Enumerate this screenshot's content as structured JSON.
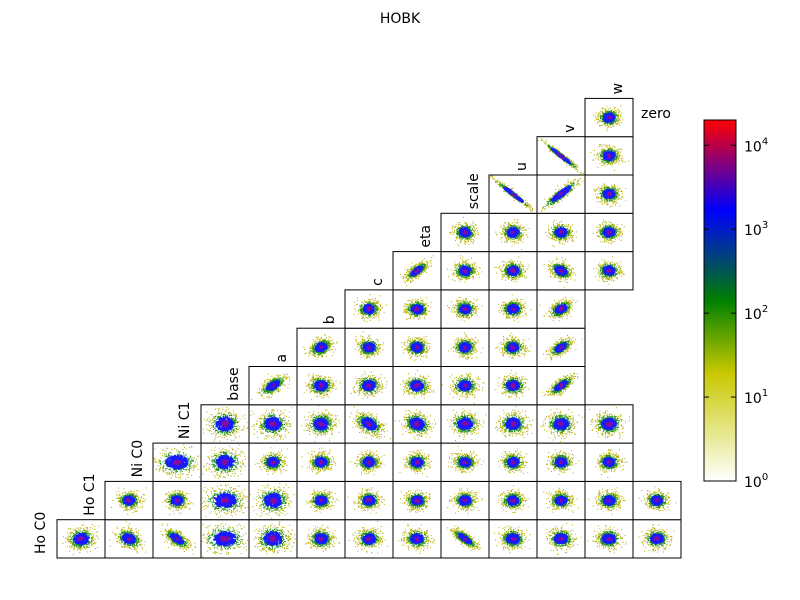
{
  "chart_data": {
    "type": "heatmap",
    "subtype": "corner-plot",
    "title": "HOBK",
    "parameters": [
      "Ho C0",
      "Ho C1",
      "Ni C0",
      "Ni C1",
      "base",
      "a",
      "b",
      "c",
      "eta",
      "scale",
      "u",
      "v",
      "w",
      "zero"
    ],
    "cells": [
      {
        "row": 0,
        "col": 0,
        "shape": "blob",
        "spread": 0.25,
        "corr": 0
      },
      {
        "row": 0,
        "col": 1,
        "shape": "blob",
        "spread": 0.22,
        "corr": -0.3
      },
      {
        "row": 0,
        "col": 2,
        "shape": "blob",
        "spread": 0.22,
        "corr": -0.6
      },
      {
        "row": 0,
        "col": 3,
        "shape": "wide",
        "spread": 0.3,
        "corr": 0
      },
      {
        "row": 0,
        "col": 4,
        "shape": "blob",
        "spread": 0.3,
        "corr": 0
      },
      {
        "row": 0,
        "col": 5,
        "shape": "blob",
        "spread": 0.22,
        "corr": 0
      },
      {
        "row": 0,
        "col": 6,
        "shape": "blob",
        "spread": 0.22,
        "corr": 0
      },
      {
        "row": 0,
        "col": 7,
        "shape": "blob",
        "spread": 0.22,
        "corr": 0
      },
      {
        "row": 0,
        "col": 8,
        "shape": "blob",
        "spread": 0.22,
        "corr": -0.75
      },
      {
        "row": 0,
        "col": 9,
        "shape": "blob",
        "spread": 0.22,
        "corr": 0
      },
      {
        "row": 0,
        "col": 10,
        "shape": "blob",
        "spread": 0.22,
        "corr": 0
      },
      {
        "row": 0,
        "col": 11,
        "shape": "blob",
        "spread": 0.22,
        "corr": 0
      },
      {
        "row": 0,
        "col": 12,
        "shape": "blob",
        "spread": 0.22,
        "corr": 0
      },
      {
        "row": 1,
        "col": 1,
        "shape": "blob",
        "spread": 0.2,
        "corr": 0
      },
      {
        "row": 1,
        "col": 2,
        "shape": "blob",
        "spread": 0.2,
        "corr": 0
      },
      {
        "row": 1,
        "col": 3,
        "shape": "wide",
        "spread": 0.3,
        "corr": 0
      },
      {
        "row": 1,
        "col": 4,
        "shape": "blob",
        "spread": 0.3,
        "corr": 0
      },
      {
        "row": 1,
        "col": 5,
        "shape": "blob",
        "spread": 0.2,
        "corr": 0
      },
      {
        "row": 1,
        "col": 6,
        "shape": "blob",
        "spread": 0.2,
        "corr": 0
      },
      {
        "row": 1,
        "col": 7,
        "shape": "blob",
        "spread": 0.2,
        "corr": 0
      },
      {
        "row": 1,
        "col": 8,
        "shape": "blob",
        "spread": 0.2,
        "corr": 0
      },
      {
        "row": 1,
        "col": 9,
        "shape": "blob",
        "spread": 0.2,
        "corr": 0
      },
      {
        "row": 1,
        "col": 10,
        "shape": "blob",
        "spread": 0.2,
        "corr": 0
      },
      {
        "row": 1,
        "col": 11,
        "shape": "blob",
        "spread": 0.2,
        "corr": 0
      },
      {
        "row": 1,
        "col": 12,
        "shape": "blob",
        "spread": 0.2,
        "corr": 0
      },
      {
        "row": 2,
        "col": 2,
        "shape": "wide",
        "spread": 0.3,
        "corr": 0
      },
      {
        "row": 2,
        "col": 3,
        "shape": "blob",
        "spread": 0.3,
        "corr": 0
      },
      {
        "row": 2,
        "col": 4,
        "shape": "blob",
        "spread": 0.2,
        "corr": 0
      },
      {
        "row": 2,
        "col": 5,
        "shape": "blob",
        "spread": 0.2,
        "corr": 0
      },
      {
        "row": 2,
        "col": 6,
        "shape": "blob",
        "spread": 0.2,
        "corr": 0
      },
      {
        "row": 2,
        "col": 7,
        "shape": "blob",
        "spread": 0.2,
        "corr": 0
      },
      {
        "row": 2,
        "col": 8,
        "shape": "blob",
        "spread": 0.2,
        "corr": 0
      },
      {
        "row": 2,
        "col": 9,
        "shape": "blob",
        "spread": 0.2,
        "corr": 0
      },
      {
        "row": 2,
        "col": 10,
        "shape": "blob",
        "spread": 0.2,
        "corr": 0
      },
      {
        "row": 2,
        "col": 11,
        "shape": "blob",
        "spread": 0.2,
        "corr": 0
      },
      {
        "row": 3,
        "col": 3,
        "shape": "blob",
        "spread": 0.3,
        "corr": 0
      },
      {
        "row": 3,
        "col": 4,
        "shape": "blob",
        "spread": 0.28,
        "corr": 0
      },
      {
        "row": 3,
        "col": 5,
        "shape": "blob",
        "spread": 0.25,
        "corr": 0
      },
      {
        "row": 3,
        "col": 6,
        "shape": "blob",
        "spread": 0.25,
        "corr": -0.4
      },
      {
        "row": 3,
        "col": 7,
        "shape": "blob",
        "spread": 0.25,
        "corr": -0.2
      },
      {
        "row": 3,
        "col": 8,
        "shape": "blob",
        "spread": 0.25,
        "corr": 0
      },
      {
        "row": 3,
        "col": 9,
        "shape": "blob",
        "spread": 0.25,
        "corr": 0
      },
      {
        "row": 3,
        "col": 10,
        "shape": "blob",
        "spread": 0.25,
        "corr": 0
      },
      {
        "row": 3,
        "col": 11,
        "shape": "blob",
        "spread": 0.25,
        "corr": 0
      },
      {
        "row": 4,
        "col": 4,
        "shape": "blob",
        "spread": 0.22,
        "corr": 0.6
      },
      {
        "row": 4,
        "col": 5,
        "shape": "blob",
        "spread": 0.22,
        "corr": 0
      },
      {
        "row": 4,
        "col": 6,
        "shape": "blob",
        "spread": 0.22,
        "corr": 0
      },
      {
        "row": 4,
        "col": 7,
        "shape": "blob",
        "spread": 0.22,
        "corr": 0
      },
      {
        "row": 4,
        "col": 8,
        "shape": "blob",
        "spread": 0.22,
        "corr": 0
      },
      {
        "row": 4,
        "col": 9,
        "shape": "blob",
        "spread": 0.22,
        "corr": 0
      },
      {
        "row": 4,
        "col": 10,
        "shape": "blob",
        "spread": 0.22,
        "corr": 0.7
      },
      {
        "row": 5,
        "col": 5,
        "shape": "blob",
        "spread": 0.2,
        "corr": 0.3
      },
      {
        "row": 5,
        "col": 6,
        "shape": "blob",
        "spread": 0.2,
        "corr": 0
      },
      {
        "row": 5,
        "col": 7,
        "shape": "blob",
        "spread": 0.2,
        "corr": 0
      },
      {
        "row": 5,
        "col": 8,
        "shape": "blob",
        "spread": 0.2,
        "corr": 0
      },
      {
        "row": 5,
        "col": 9,
        "shape": "blob",
        "spread": 0.2,
        "corr": 0
      },
      {
        "row": 5,
        "col": 10,
        "shape": "blob",
        "spread": 0.2,
        "corr": 0.6
      },
      {
        "row": 6,
        "col": 6,
        "shape": "blob",
        "spread": 0.2,
        "corr": 0
      },
      {
        "row": 6,
        "col": 7,
        "shape": "blob",
        "spread": 0.2,
        "corr": 0
      },
      {
        "row": 6,
        "col": 8,
        "shape": "blob",
        "spread": 0.2,
        "corr": 0
      },
      {
        "row": 6,
        "col": 9,
        "shape": "blob",
        "spread": 0.2,
        "corr": 0
      },
      {
        "row": 6,
        "col": 10,
        "shape": "blob",
        "spread": 0.2,
        "corr": 0.4
      },
      {
        "row": 7,
        "col": 7,
        "shape": "blob",
        "spread": 0.2,
        "corr": 0.7
      },
      {
        "row": 7,
        "col": 8,
        "shape": "blob",
        "spread": 0.2,
        "corr": 0
      },
      {
        "row": 7,
        "col": 9,
        "shape": "blob",
        "spread": 0.2,
        "corr": 0
      },
      {
        "row": 7,
        "col": 10,
        "shape": "blob",
        "spread": 0.2,
        "corr": -0.3
      },
      {
        "row": 7,
        "col": 11,
        "shape": "blob",
        "spread": 0.2,
        "corr": 0
      },
      {
        "row": 8,
        "col": 8,
        "shape": "blob",
        "spread": 0.2,
        "corr": 0
      },
      {
        "row": 8,
        "col": 9,
        "shape": "blob",
        "spread": 0.2,
        "corr": 0
      },
      {
        "row": 8,
        "col": 10,
        "shape": "blob",
        "spread": 0.2,
        "corr": 0
      },
      {
        "row": 8,
        "col": 11,
        "shape": "blob",
        "spread": 0.2,
        "corr": 0
      },
      {
        "row": 9,
        "col": 9,
        "shape": "line",
        "spread": 0.2,
        "corr": -0.97
      },
      {
        "row": 9,
        "col": 10,
        "shape": "line",
        "spread": 0.2,
        "corr": 0.9
      },
      {
        "row": 9,
        "col": 11,
        "shape": "blob",
        "spread": 0.2,
        "corr": 0
      },
      {
        "row": 10,
        "col": 10,
        "shape": "line",
        "spread": 0.2,
        "corr": -0.97
      },
      {
        "row": 10,
        "col": 11,
        "shape": "blob",
        "spread": 0.2,
        "corr": 0
      },
      {
        "row": 11,
        "col": 11,
        "shape": "blob",
        "spread": 0.2,
        "corr": 0
      }
    ],
    "colorbar": {
      "scale": "log",
      "range": [
        1,
        20000
      ],
      "ticks": [
        {
          "value": 1,
          "base": "10",
          "exp": "0"
        },
        {
          "value": 10,
          "base": "10",
          "exp": "1"
        },
        {
          "value": 100,
          "base": "10",
          "exp": "2"
        },
        {
          "value": 1000,
          "base": "10",
          "exp": "3"
        },
        {
          "value": 10000,
          "base": "10",
          "exp": "4"
        }
      ],
      "colors": [
        "#ffffff",
        "#bfbf00",
        "#008000",
        "#0000ff",
        "#ff0000"
      ]
    }
  }
}
